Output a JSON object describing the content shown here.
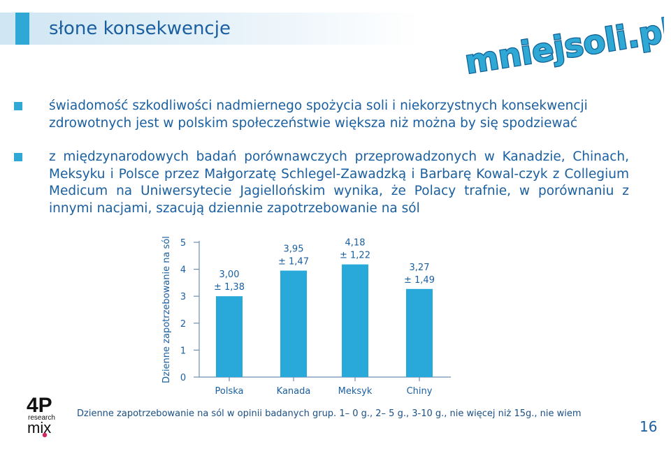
{
  "title": "słone konsekwencje",
  "brand_logo": "mniejsoli.pl",
  "bullets": [
    "świadomość szkodliwości nadmiernego spożycia soli i niekorzystnych konsekwencji zdrowotnych jest w polskim społeczeństwie większa niż można by się spodziewać",
    "z międzynarodowych badań porównawczych przeprowadzonych w Kanadzie, Chinach, Meksyku i Polsce przez Małgorzatę Schlegel-Zawadzką i Barbarę Kowal-czyk z Collegium Medicum na Uniwersytecie Jagiellońskim wynika, że Polacy trafnie, w porównaniu z innymi nacjami, szacują dziennie zapotrzebowanie na sól"
  ],
  "chart_data": {
    "type": "bar",
    "ylabel": "Dzienne zapotrzebowanie na sól",
    "categories": [
      "Polska",
      "Kanada",
      "Meksyk",
      "Chiny"
    ],
    "values": [
      3.0,
      3.95,
      4.18,
      3.27
    ],
    "value_labels": [
      "3,00",
      "3,95",
      "4,18",
      "3,27"
    ],
    "error_labels": [
      "± 1,38",
      "± 1,47",
      "± 1,22",
      "± 1,49"
    ],
    "ylim": [
      0,
      5
    ],
    "yticks": [
      "0",
      "1",
      "2",
      "3",
      "4",
      "5"
    ],
    "bar_color": "#29a9d9"
  },
  "footnote": "Dzienne zapotrzebowanie na sól w opinii badanych grup. 1– 0 g., 2– 5 g., 3-10 g., nie więcej niż 15g., nie wiem",
  "footer_logo": {
    "line1": "4P",
    "line2": "research",
    "line3": "mix"
  },
  "page_number": "16",
  "colors": {
    "primary_text": "#1a5fa0",
    "accent": "#2fa8d6"
  }
}
